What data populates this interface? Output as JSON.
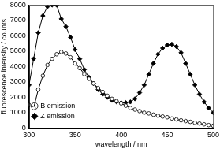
{
  "chart_data": {
    "type": "line",
    "x_label": "wavelength / nm",
    "y_label": "fluorescence intensity / counts",
    "x": [
      300,
      305,
      310,
      315,
      320,
      325,
      330,
      335,
      340,
      345,
      350,
      355,
      360,
      365,
      370,
      375,
      380,
      385,
      390,
      395,
      400,
      405,
      410,
      415,
      420,
      425,
      430,
      435,
      440,
      445,
      450,
      455,
      460,
      465,
      470,
      475,
      480,
      485,
      490,
      495,
      500
    ],
    "series": [
      {
        "name": "B emission",
        "color": "#000000",
        "marker": "open_circle",
        "values": [
          1500,
          1300,
          2500,
          3400,
          4100,
          4500,
          4800,
          4950,
          4850,
          4600,
          4200,
          3900,
          3500,
          3200,
          2900,
          2600,
          2350,
          2100,
          1900,
          1750,
          1600,
          1450,
          1300,
          1200,
          1100,
          1000,
          950,
          870,
          800,
          750,
          700,
          620,
          560,
          500,
          450,
          400,
          340,
          290,
          240,
          190,
          150
        ]
      },
      {
        "name": "Z emission",
        "color": "#000000",
        "marker": "filled_diamond",
        "values": [
          2800,
          4500,
          6200,
          7300,
          7900,
          8000,
          8000,
          7100,
          6600,
          5900,
          5100,
          4500,
          3800,
          3300,
          2900,
          2500,
          2200,
          2000,
          1800,
          1700,
          1650,
          1650,
          1700,
          1900,
          2300,
          2800,
          3500,
          4200,
          4800,
          5200,
          5400,
          5450,
          5300,
          4900,
          4200,
          3500,
          2800,
          2200,
          1700,
          1300,
          1000
        ]
      }
    ],
    "xlim": [
      300,
      500
    ],
    "xticks": [
      300,
      350,
      400,
      450,
      500
    ],
    "ylim": [
      0,
      8000
    ],
    "yticks": [
      0,
      1000,
      2000,
      3000,
      4000,
      5000,
      6000,
      7000,
      8000
    ],
    "grid": false,
    "legend": "top right"
  }
}
